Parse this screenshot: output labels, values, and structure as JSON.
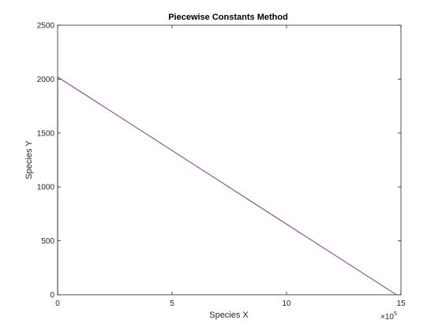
{
  "chart_data": {
    "type": "line",
    "title": "Piecewise Constants Method",
    "xlabel": "Species X",
    "ylabel": "Species Y",
    "xlim": [
      0,
      1500000
    ],
    "ylim": [
      0,
      2500
    ],
    "x_tick_values": [
      0,
      500000,
      1000000,
      1500000
    ],
    "x_tick_labels": [
      "0",
      "5",
      "10",
      "15"
    ],
    "x_exponent_base": "×10",
    "x_exponent_power": "5",
    "y_tick_values": [
      0,
      500,
      1000,
      1500,
      2000,
      2500
    ],
    "y_tick_labels": [
      "0",
      "500",
      "1000",
      "1500",
      "2000",
      "2500"
    ],
    "grid": false,
    "series": [
      {
        "color": "#7e2f8e",
        "x": [
          0,
          0,
          1480000,
          0,
          0
        ],
        "y": [
          0,
          2020,
          0,
          2020,
          0
        ]
      }
    ]
  }
}
